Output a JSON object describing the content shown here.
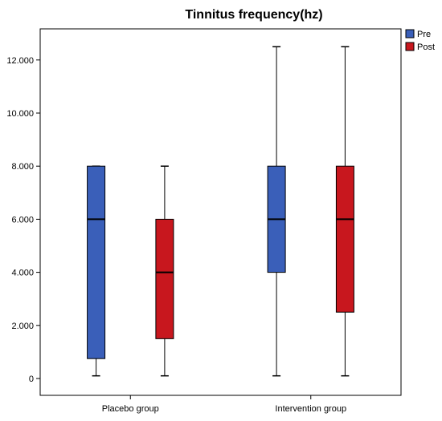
{
  "chart_data": {
    "type": "box",
    "title": "Tinnitus frequency(hz)",
    "xlabel": "",
    "ylabel": "",
    "ylim": [
      -500,
      13300
    ],
    "y_ticks": [
      0,
      2000,
      4000,
      6000,
      8000,
      10000,
      12000
    ],
    "y_tick_labels": [
      "0",
      "2.000",
      "4.000",
      "6.000",
      "8.000",
      "10.000",
      "12.000"
    ],
    "categories": [
      "Placebo group",
      "Intervention group"
    ],
    "legend": {
      "position": "top-right"
    },
    "series": [
      {
        "name": "Pre",
        "color": "#3a5fb9",
        "boxes": [
          {
            "min": 100,
            "q1": 750,
            "median": 6000,
            "q3": 8000,
            "max": 8000
          },
          {
            "min": 100,
            "q1": 4000,
            "median": 6000,
            "q3": 8000,
            "max": 12500
          }
        ]
      },
      {
        "name": "Post",
        "color": "#c8171e",
        "boxes": [
          {
            "min": 100,
            "q1": 1500,
            "median": 4000,
            "q3": 6000,
            "max": 8000
          },
          {
            "min": 100,
            "q1": 2500,
            "median": 6000,
            "q3": 8000,
            "max": 12500
          }
        ]
      }
    ]
  }
}
